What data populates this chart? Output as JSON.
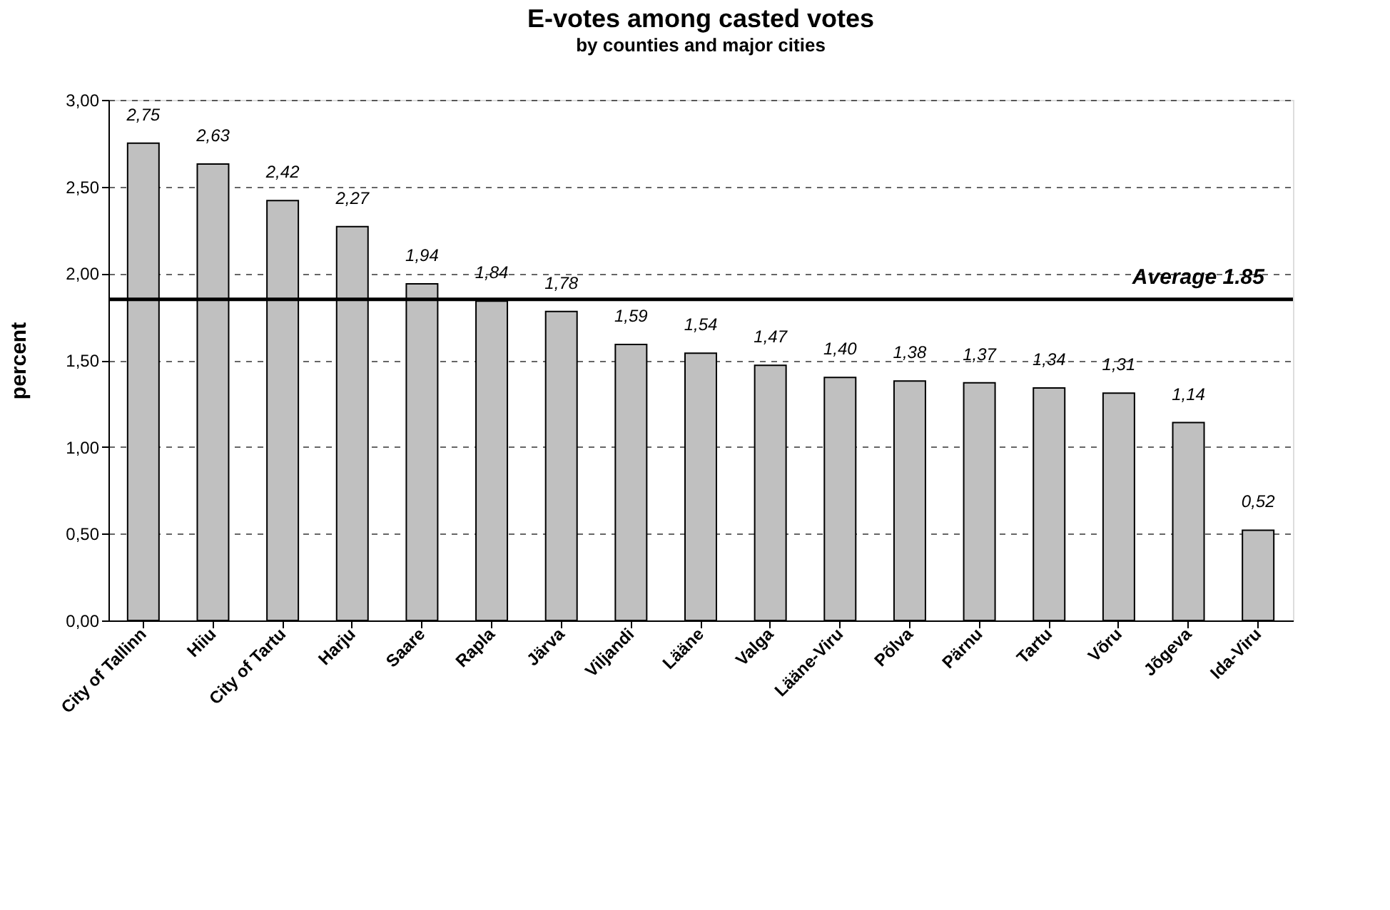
{
  "chart_data": {
    "type": "bar",
    "title": "E-votes among casted votes",
    "subtitle": "by counties and major cities",
    "ylabel": "percent",
    "categories": [
      "City of Tallinn",
      "Hiiu",
      "City of Tartu",
      "Harju",
      "Saare",
      "Rapla",
      "Järva",
      "Viljandi",
      "Lääne",
      "Valga",
      "Lääne-Viru",
      "Põlva",
      "Pärnu",
      "Tartu",
      "Võru",
      "Jõgeva",
      "Ida-Viru"
    ],
    "values": [
      2.75,
      2.63,
      2.42,
      2.27,
      1.94,
      1.84,
      1.78,
      1.59,
      1.54,
      1.47,
      1.4,
      1.38,
      1.37,
      1.34,
      1.31,
      1.14,
      0.52
    ],
    "value_labels": [
      "2,75",
      "2,63",
      "2,42",
      "2,27",
      "1,94",
      "1,84",
      "1,78",
      "1,59",
      "1,54",
      "1,47",
      "1,40",
      "1,38",
      "1,37",
      "1,34",
      "1,31",
      "1,14",
      "0,52"
    ],
    "color": "#c0c0c0",
    "ylim": [
      0,
      3
    ],
    "yticks": [
      {
        "value": 0,
        "label": "0,00"
      },
      {
        "value": 0.5,
        "label": "0,50"
      },
      {
        "value": 1,
        "label": "1,00"
      },
      {
        "value": 1.5,
        "label": "1,50"
      },
      {
        "value": 2,
        "label": "2,00"
      },
      {
        "value": 2.5,
        "label": "2,50"
      },
      {
        "value": 3,
        "label": "3,00"
      }
    ],
    "ref_lines": [
      {
        "axis": "y",
        "value": 1.85,
        "label": "Average 1.85",
        "color": "#000000"
      }
    ],
    "grid": "y"
  }
}
